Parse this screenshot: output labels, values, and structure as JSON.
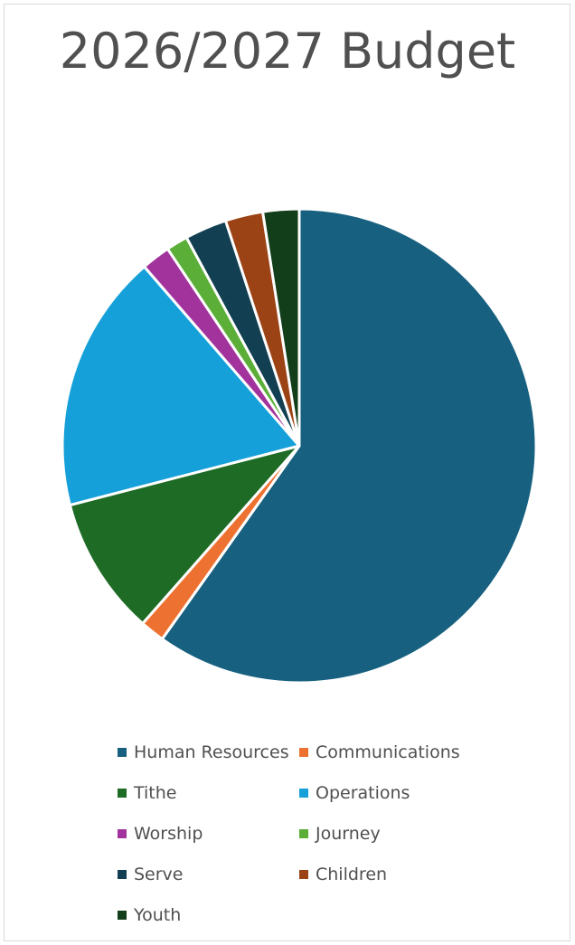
{
  "chart_data": {
    "type": "pie",
    "title": "2026/2027 Budget",
    "slices": [
      {
        "label": "Human Resources",
        "value": 60.6,
        "color": "#17607f"
      },
      {
        "label": "Communications",
        "value": 1.7,
        "color": "#ed7232"
      },
      {
        "label": "Tithe",
        "value": 9.6,
        "color": "#1e6b26"
      },
      {
        "label": "Operations",
        "value": 17.9,
        "color": "#15a0d9"
      },
      {
        "label": "Worship",
        "value": 2.0,
        "color": "#a2339d"
      },
      {
        "label": "Journey",
        "value": 1.5,
        "color": "#5bae37"
      },
      {
        "label": "Serve",
        "value": 2.9,
        "color": "#123f52"
      },
      {
        "label": "Children",
        "value": 2.6,
        "color": "#9c4316"
      },
      {
        "label": "Youth",
        "value": 2.5,
        "color": "#123e1a"
      }
    ],
    "legend_position": "bottom",
    "start_angle_deg": 0,
    "direction": "clockwise"
  }
}
